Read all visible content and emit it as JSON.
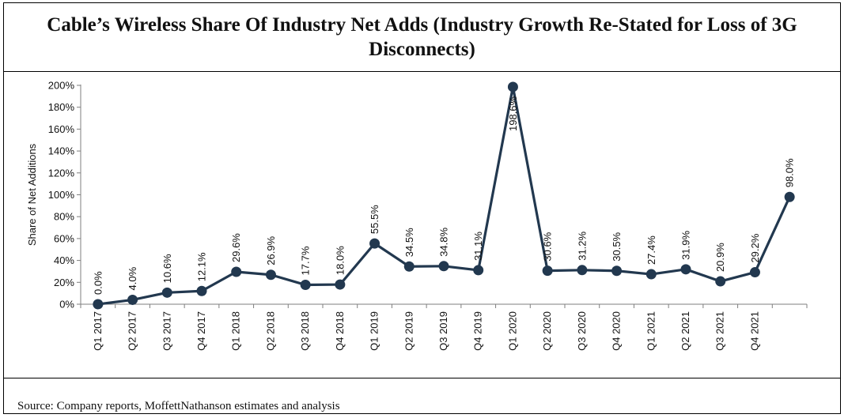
{
  "title": "Cable’s Wireless Share Of Industry Net Adds  (Industry Growth Re-Stated for Loss of 3G Disconnects)",
  "source": "Source: Company reports, MoffettNathanson estimates and analysis",
  "chart_data": {
    "type": "line",
    "title": "Cable’s Wireless Share Of Industry Net Adds  (Industry Growth Re-Stated for Loss of 3G Disconnects)",
    "xlabel": "",
    "ylabel": "Share of Net Additions",
    "ylim": [
      0,
      200
    ],
    "y_ticks": [
      "0%",
      "20%",
      "40%",
      "60%",
      "80%",
      "100%",
      "120%",
      "140%",
      "160%",
      "180%",
      "200%"
    ],
    "y_tick_values": [
      0,
      20,
      40,
      60,
      80,
      100,
      120,
      140,
      160,
      180,
      200
    ],
    "categories": [
      "Q1 2017",
      "Q2 2017",
      "Q3 2017",
      "Q4 2017",
      "Q1 2018",
      "Q2 2018",
      "Q3 2018",
      "Q4 2018",
      "Q1 2019",
      "Q2 2019",
      "Q3 2019",
      "Q4 2019",
      "Q1 2020",
      "Q2 2020",
      "Q3 2020",
      "Q4 2020",
      "Q1 2021",
      "Q2 2021",
      "Q3 2021",
      "Q4 2021",
      ""
    ],
    "series": [
      {
        "values": [
          0.0,
          4.0,
          10.6,
          12.1,
          29.6,
          26.9,
          17.7,
          18.0,
          55.5,
          34.5,
          34.8,
          31.1,
          198.6,
          30.6,
          31.2,
          30.5,
          27.4,
          31.9,
          20.9,
          29.2,
          98.0
        ],
        "labels": [
          "0.0%",
          "4.0%",
          "10.6%",
          "12.1%",
          "29.6%",
          "26.9%",
          "17.7%",
          "18.0%",
          "55.5%",
          "34.5%",
          "34.8%",
          "31.1%",
          "198.6%",
          "30.6%",
          "31.2%",
          "30.5%",
          "27.4%",
          "31.9%",
          "20.9%",
          "29.2%",
          "98.0%"
        ],
        "color": "#22384f"
      }
    ],
    "grid": false,
    "legend": "none"
  }
}
